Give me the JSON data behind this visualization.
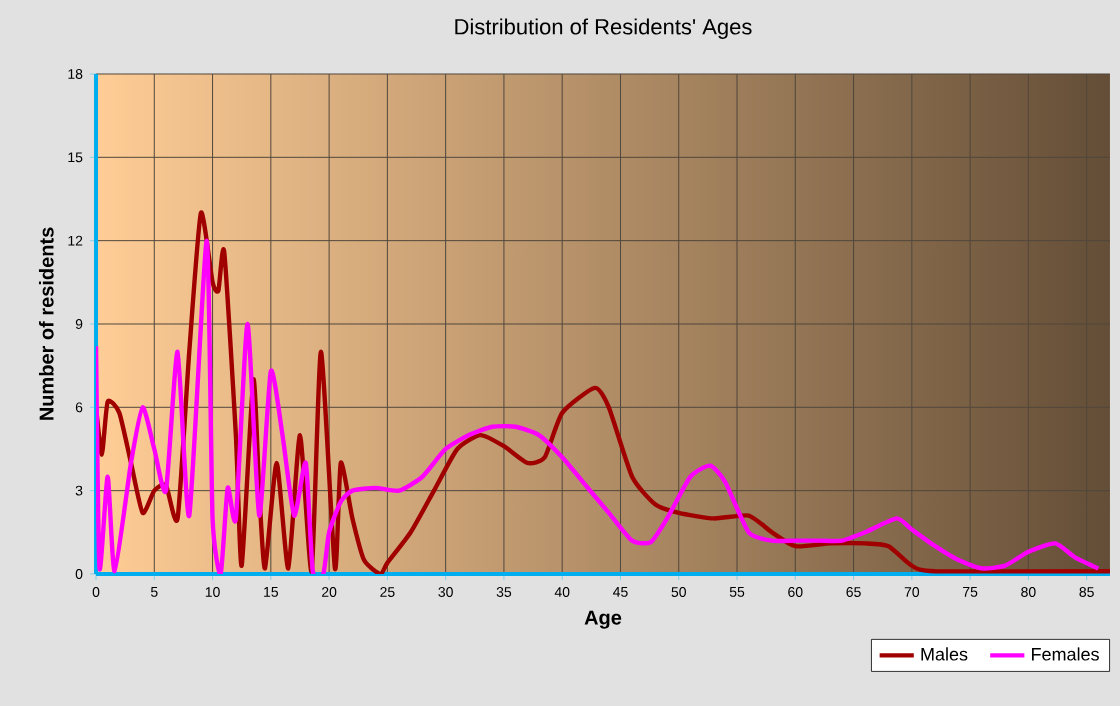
{
  "chart_data": {
    "type": "line",
    "title": "Distribution of Residents' Ages",
    "xlabel": "Age",
    "ylabel": "Number of residents",
    "xlim": [
      0,
      87
    ],
    "xticks": [
      0,
      5,
      10,
      15,
      20,
      25,
      30,
      35,
      40,
      45,
      50,
      55,
      60,
      65,
      70,
      75,
      80,
      85
    ],
    "ylim": [
      0,
      18
    ],
    "yticks": [
      0,
      3,
      6,
      9,
      12,
      15,
      18
    ],
    "grid": true,
    "legend": "bottom right",
    "marker": "none",
    "line_style": "solid",
    "series": [
      {
        "name": "Males",
        "color": "#a00000",
        "x": [
          0,
          0.5,
          1,
          2,
          3,
          4,
          5,
          6,
          7,
          8,
          9,
          10,
          10.5,
          11,
          12,
          12.5,
          13.5,
          14,
          14.5,
          15.5,
          16.5,
          17.5,
          18.5,
          19.3,
          20.5,
          21,
          22,
          23,
          24.4,
          25,
          27,
          29,
          31,
          33,
          35,
          37,
          38.5,
          40,
          42.8,
          44,
          46,
          48,
          50,
          53,
          56,
          58,
          60,
          63,
          66,
          68,
          70,
          72,
          87
        ],
        "values": [
          6,
          4.3,
          6.2,
          5.8,
          4,
          2.2,
          3,
          3.2,
          2,
          8,
          13,
          10.5,
          10.2,
          11.6,
          5,
          0.3,
          7,
          3,
          0.2,
          4,
          0.2,
          5,
          0.1,
          8,
          0.2,
          4,
          2,
          0.5,
          0,
          0.4,
          1.5,
          3,
          4.5,
          5,
          4.6,
          4,
          4.2,
          5.8,
          6.7,
          6,
          3.5,
          2.5,
          2.2,
          2,
          2.1,
          1.5,
          1,
          1.1,
          1.1,
          1,
          0.3,
          0.1,
          0.1
        ]
      },
      {
        "name": "Females",
        "color": "#ff00ff",
        "x": [
          0,
          0.3,
          1,
          1.6,
          3,
          4,
          5,
          6,
          7,
          8,
          9.5,
          10,
          10.7,
          11.3,
          12,
          13,
          14,
          15,
          16,
          17,
          18,
          18.6,
          19.5,
          20,
          21,
          22,
          24,
          26,
          28,
          30,
          32,
          34,
          36,
          38,
          40,
          42,
          44,
          46,
          47.6,
          49,
          51,
          52.7,
          54,
          56,
          58,
          60,
          62,
          64,
          66,
          68.7,
          70,
          72,
          74,
          76,
          78,
          80,
          82.3,
          84,
          86
        ],
        "values": [
          8.2,
          0.2,
          3.5,
          0.1,
          4,
          6,
          4.5,
          3,
          8,
          2.1,
          12,
          2,
          0,
          3.1,
          2,
          9,
          2.1,
          7.3,
          5,
          2.1,
          4,
          0.1,
          0,
          1.5,
          2.6,
          3,
          3.1,
          3,
          3.5,
          4.5,
          5,
          5.3,
          5.3,
          5,
          4.2,
          3.2,
          2.2,
          1.2,
          1.15,
          2,
          3.5,
          3.9,
          3.3,
          1.5,
          1.2,
          1.2,
          1.2,
          1.2,
          1.5,
          2,
          1.6,
          1,
          0.5,
          0.2,
          0.3,
          0.8,
          1.1,
          0.6,
          0.2
        ]
      }
    ]
  }
}
